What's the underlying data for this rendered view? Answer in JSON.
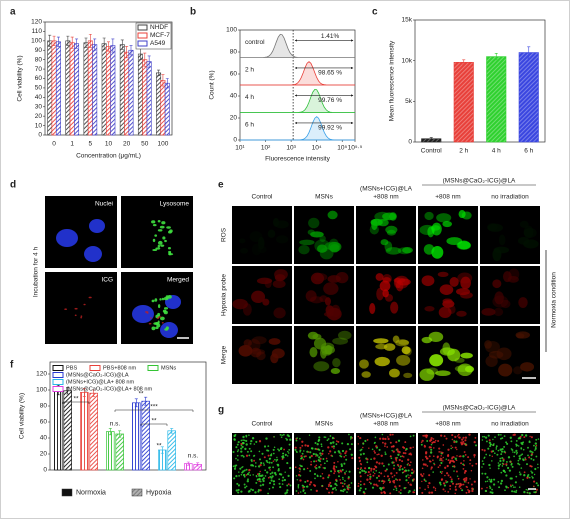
{
  "chart_data": [
    {
      "panel": "a",
      "type": "bar",
      "xlabel": "Concentration (μg/mL)",
      "ylabel": "Cell viability (%)",
      "categories": [
        "0",
        "1",
        "5",
        "10",
        "20",
        "50",
        "100"
      ],
      "series": [
        {
          "name": "NHDF",
          "color": "#404040",
          "values": [
            100,
            100,
            98,
            97,
            96,
            86,
            66
          ],
          "errors": [
            6,
            5,
            5,
            6,
            5,
            6,
            3
          ]
        },
        {
          "name": "MCF-7",
          "color": "#e8403a",
          "values": [
            100,
            98,
            100,
            94,
            88,
            80,
            58
          ],
          "errors": [
            5,
            6,
            7,
            5,
            6,
            7,
            6
          ]
        },
        {
          "name": "A549",
          "color": "#3f3fc8",
          "values": [
            99,
            97,
            96,
            95,
            90,
            78,
            55
          ],
          "errors": [
            5,
            5,
            6,
            7,
            5,
            6,
            5
          ]
        }
      ],
      "ylim": [
        0,
        120
      ],
      "yticks": [
        0,
        10,
        20,
        30,
        40,
        50,
        60,
        70,
        80,
        90,
        100,
        110,
        120
      ],
      "legend": "upper-right"
    },
    {
      "panel": "b",
      "type": "density",
      "xlabel": "Fluorescence intensity",
      "ylabel": "Count (%)",
      "log_scale": true,
      "xlim": [
        10,
        316228
      ],
      "xticks": [
        {
          "value": 10,
          "label": "10¹"
        },
        {
          "value": 100,
          "label": "10²"
        },
        {
          "value": 1000,
          "label": "10³"
        },
        {
          "value": 10000,
          "label": "10⁴"
        },
        {
          "value": 100000,
          "label": "10⁵"
        },
        {
          "value": 316228,
          "label": "10⁵·⁵"
        }
      ],
      "ylim": [
        0,
        100
      ],
      "yticks": [
        0,
        20,
        40,
        60,
        80,
        100
      ],
      "gate": 1200,
      "series": [
        {
          "name": "control",
          "color": "#777777",
          "peak": 400,
          "gate_label": "1.41%"
        },
        {
          "name": "2 h",
          "color": "#e8403a",
          "peak": 5000,
          "gate_label": "98.65 %"
        },
        {
          "name": "4 h",
          "color": "#2fbf3a",
          "peak": 9000,
          "gate_label": "99.76 %"
        },
        {
          "name": "6 h",
          "color": "#3aa0e8",
          "peak": 10000,
          "gate_label": "99.92 %"
        }
      ]
    },
    {
      "panel": "c",
      "type": "bar",
      "ylabel": "Mean fluorescence intensity",
      "categories": [
        "Control",
        "2 h",
        "4 h",
        "6 h"
      ],
      "values": [
        400,
        9800,
        10500,
        11000
      ],
      "errors": [
        150,
        300,
        400,
        700
      ],
      "colors": [
        "#202020",
        "#e8403a",
        "#2fd12f",
        "#3a46e0"
      ],
      "ylim": [
        0,
        15000
      ],
      "yticks": [
        0,
        {
          "value": 5000,
          "label": "5k"
        },
        {
          "value": 10000,
          "label": "10k"
        },
        {
          "value": 15000,
          "label": "15k"
        }
      ]
    },
    {
      "panel": "f",
      "type": "bar",
      "ylabel": "Cell viability (%)",
      "categories": [
        "PBS",
        "PBS+808 nm",
        "MSNs",
        "(MSNs@CaO₂-ICG)@LA",
        "(MSNs+ICG)@LA+ 808 nm",
        "(MSNs@CaO₂-ICG)@LA+ 808 nm"
      ],
      "category_colors": [
        "#111111",
        "#e8403a",
        "#35c435",
        "#2a3ad0",
        "#2ab8e8",
        "#e040e0"
      ],
      "series": [
        {
          "name": "Normoxia",
          "color": "#111111",
          "values": [
            100,
            97,
            48,
            84,
            25,
            8
          ],
          "errors": [
            6,
            5,
            4,
            5,
            4,
            2
          ]
        },
        {
          "name": "Hypoxia",
          "color": "#b0b0b0",
          "values": [
            99,
            96,
            45,
            86,
            49,
            7
          ],
          "errors": [
            4,
            4,
            4,
            5,
            3,
            2
          ]
        }
      ],
      "ylim": [
        0,
        135
      ],
      "yticks": [
        0,
        20,
        40,
        60,
        80,
        100,
        120
      ],
      "annotations": [
        "**",
        "n.s.",
        "***",
        "**",
        "**",
        "**",
        "n.s."
      ]
    }
  ],
  "images": [
    {
      "panel": "d",
      "side_label": "Incubation for 4 h",
      "labels": [
        "Nuclei",
        "Lysosome",
        "ICG",
        "Merged"
      ]
    },
    {
      "panel": "e",
      "row_labels": [
        "ROS",
        "Hypoxia probe",
        "Merge"
      ],
      "side_label": "Normoxia condition",
      "columns": [
        {
          "text": "Control"
        },
        {
          "text": "MSNs"
        },
        {
          "text": "(MSNs+ICG)@LA",
          "sub": "+808 nm"
        }
      ],
      "group": {
        "text": "(MSNs@CaO₂-ICG)@LA",
        "subs": [
          "+808 nm",
          "no irradiation"
        ]
      }
    },
    {
      "panel": "g",
      "columns": [
        {
          "text": "Control"
        },
        {
          "text": "MSNs"
        },
        {
          "text": "(MSNs+ICG)@LA",
          "sub": "+808 nm"
        }
      ],
      "group": {
        "text": "(MSNs@CaO₂-ICG)@LA",
        "subs": [
          "+808 nm",
          "no irradiation"
        ]
      }
    }
  ]
}
